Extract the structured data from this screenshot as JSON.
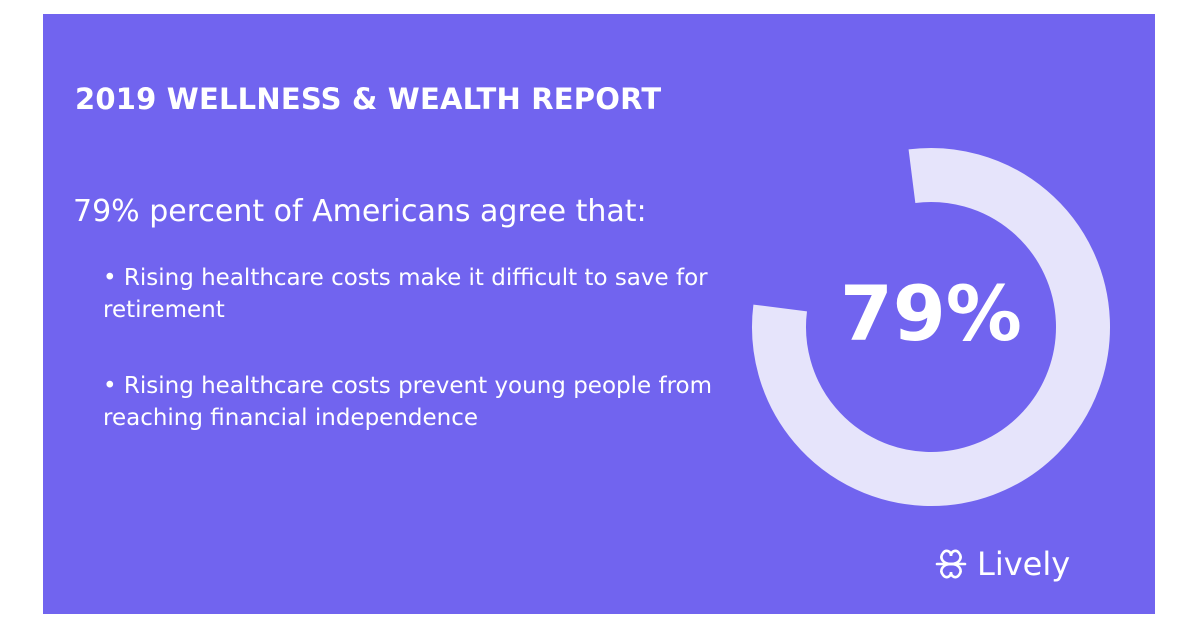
{
  "report": {
    "title": "2019 WELLNESS & WEALTH REPORT",
    "lead": "79% percent of Americans agree that:",
    "bullets": [
      "• Rising healthcare costs make it difficult to save for retirement",
      "• Rising healthcare costs prevent young people from reaching financial independence"
    ]
  },
  "stat": {
    "value_text": "79%",
    "percent": 79
  },
  "brand": {
    "name": "Lively",
    "icon": "lively-logo-icon"
  },
  "colors": {
    "background": "#7164ef",
    "ring": "#e6e4fb",
    "text": "#ffffff"
  }
}
